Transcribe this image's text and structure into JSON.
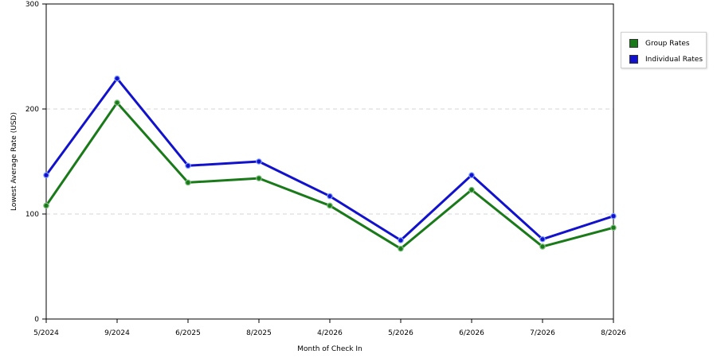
{
  "chart_data": {
    "type": "line",
    "categories": [
      "5/2024",
      "9/2024",
      "6/2025",
      "8/2025",
      "4/2026",
      "5/2026",
      "6/2026",
      "7/2026",
      "8/2026"
    ],
    "series": [
      {
        "name": "Group Rates",
        "color": "#1a7a1a",
        "values": [
          108,
          206,
          130,
          134,
          108,
          67,
          123,
          69,
          87
        ]
      },
      {
        "name": "Individual Rates",
        "color": "#1212cc",
        "values": [
          137,
          229,
          146,
          150,
          117,
          75,
          137,
          76,
          98
        ]
      }
    ],
    "xlabel": "Month of Check In",
    "ylabel": "Lowest Average Rate (USD)",
    "ylim": [
      0,
      300
    ],
    "yticks": [
      0,
      100,
      200,
      300
    ],
    "grid": "horizontal-dashed",
    "legend": "right"
  }
}
